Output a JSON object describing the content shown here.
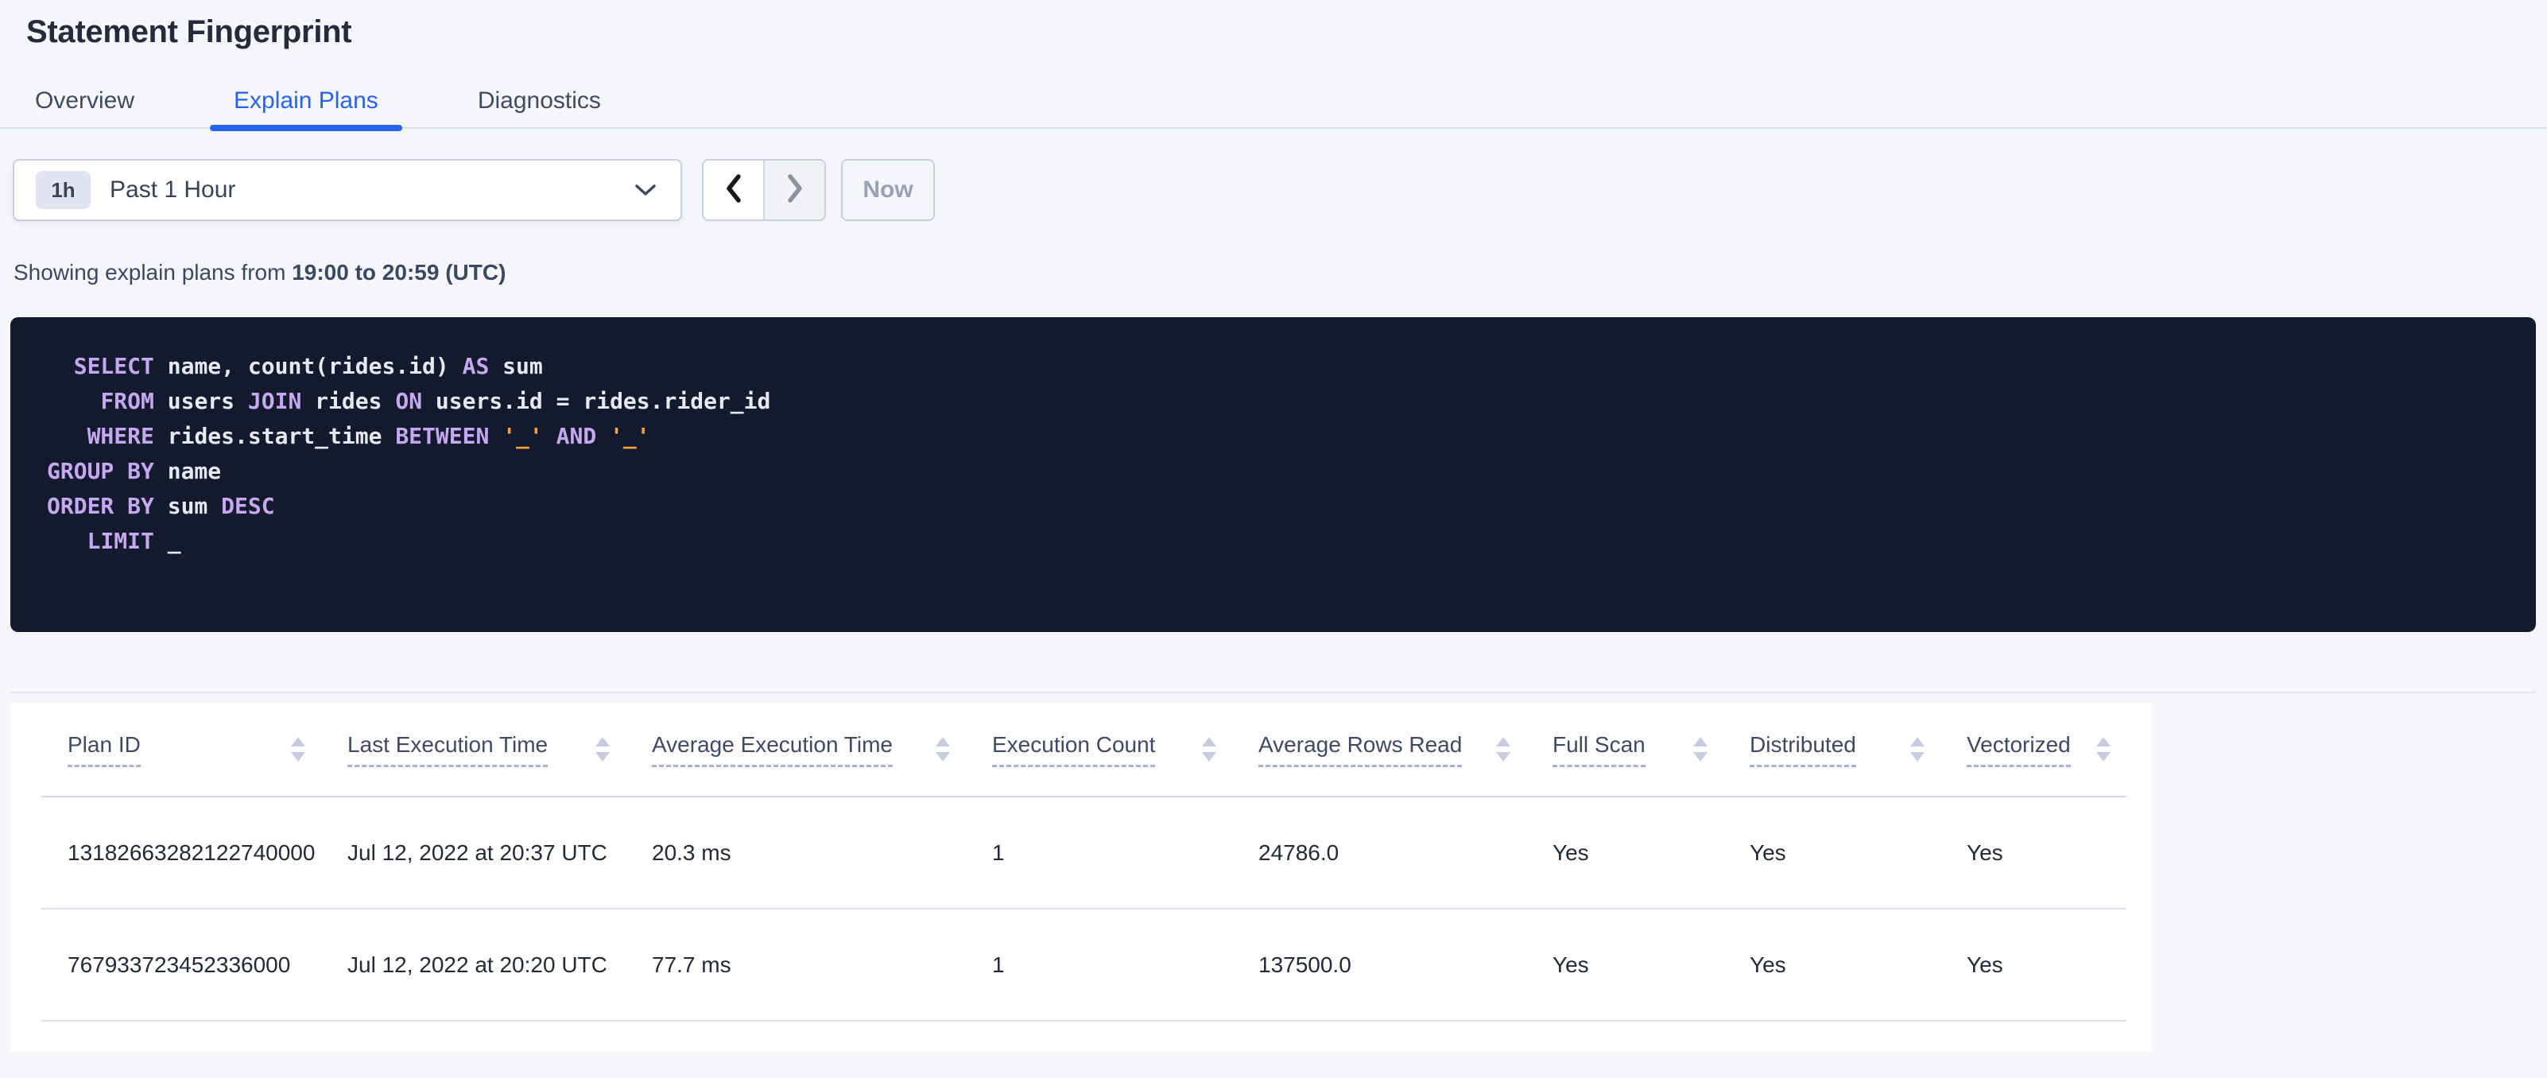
{
  "page": {
    "title": "Statement Fingerprint"
  },
  "tabs": [
    {
      "label": "Overview",
      "active": false
    },
    {
      "label": "Explain Plans",
      "active": true
    },
    {
      "label": "Diagnostics",
      "active": false
    }
  ],
  "time_picker": {
    "badge": "1h",
    "selected_label": "Past 1 Hour",
    "now_label": "Now"
  },
  "time_summary": {
    "prefix": "Showing explain plans from ",
    "range_bold": "19:00 to 20:59 (UTC)"
  },
  "sql": {
    "lines": [
      [
        {
          "t": "id",
          "s": "  "
        },
        {
          "t": "kw",
          "s": "SELECT"
        },
        {
          "t": "id",
          "s": " name, count(rides.id) "
        },
        {
          "t": "kw",
          "s": "AS"
        },
        {
          "t": "id",
          "s": " sum"
        }
      ],
      [
        {
          "t": "id",
          "s": "    "
        },
        {
          "t": "kw",
          "s": "FROM"
        },
        {
          "t": "id",
          "s": " users "
        },
        {
          "t": "kw",
          "s": "JOIN"
        },
        {
          "t": "id",
          "s": " rides "
        },
        {
          "t": "kw",
          "s": "ON"
        },
        {
          "t": "id",
          "s": " users.id = rides.rider_id"
        }
      ],
      [
        {
          "t": "id",
          "s": "   "
        },
        {
          "t": "kw",
          "s": "WHERE"
        },
        {
          "t": "id",
          "s": " rides.start_time "
        },
        {
          "t": "kw",
          "s": "BETWEEN"
        },
        {
          "t": "id",
          "s": " "
        },
        {
          "t": "lit",
          "s": "'_'"
        },
        {
          "t": "id",
          "s": " "
        },
        {
          "t": "kw",
          "s": "AND"
        },
        {
          "t": "id",
          "s": " "
        },
        {
          "t": "lit",
          "s": "'_'"
        }
      ],
      [
        {
          "t": "kw",
          "s": "GROUP BY"
        },
        {
          "t": "id",
          "s": " name"
        }
      ],
      [
        {
          "t": "kw",
          "s": "ORDER BY"
        },
        {
          "t": "id",
          "s": " sum "
        },
        {
          "t": "kw",
          "s": "DESC"
        }
      ],
      [
        {
          "t": "id",
          "s": "   "
        },
        {
          "t": "kw",
          "s": "LIMIT"
        },
        {
          "t": "id",
          "s": " _"
        }
      ]
    ]
  },
  "plans_table": {
    "columns": [
      "Plan ID",
      "Last Execution Time",
      "Average Execution Time",
      "Execution Count",
      "Average Rows Read",
      "Full Scan",
      "Distributed",
      "Vectorized"
    ],
    "rows": [
      [
        "13182663282122740000",
        "Jul 12, 2022 at 20:37 UTC",
        "20.3 ms",
        "1",
        "24786.0",
        "Yes",
        "Yes",
        "Yes"
      ],
      [
        "767933723452336000",
        "Jul 12, 2022 at 20:20 UTC",
        "77.7 ms",
        "1",
        "137500.0",
        "Yes",
        "Yes",
        "Yes"
      ]
    ]
  },
  "colors": {
    "accent_blue": "#2a63eb",
    "page_background": "#f4f6fa",
    "code_background": "#131a2e",
    "code_keyword": "#c5a8ef",
    "code_identifier": "#e5e9f2",
    "code_literal": "#f2a43c"
  }
}
